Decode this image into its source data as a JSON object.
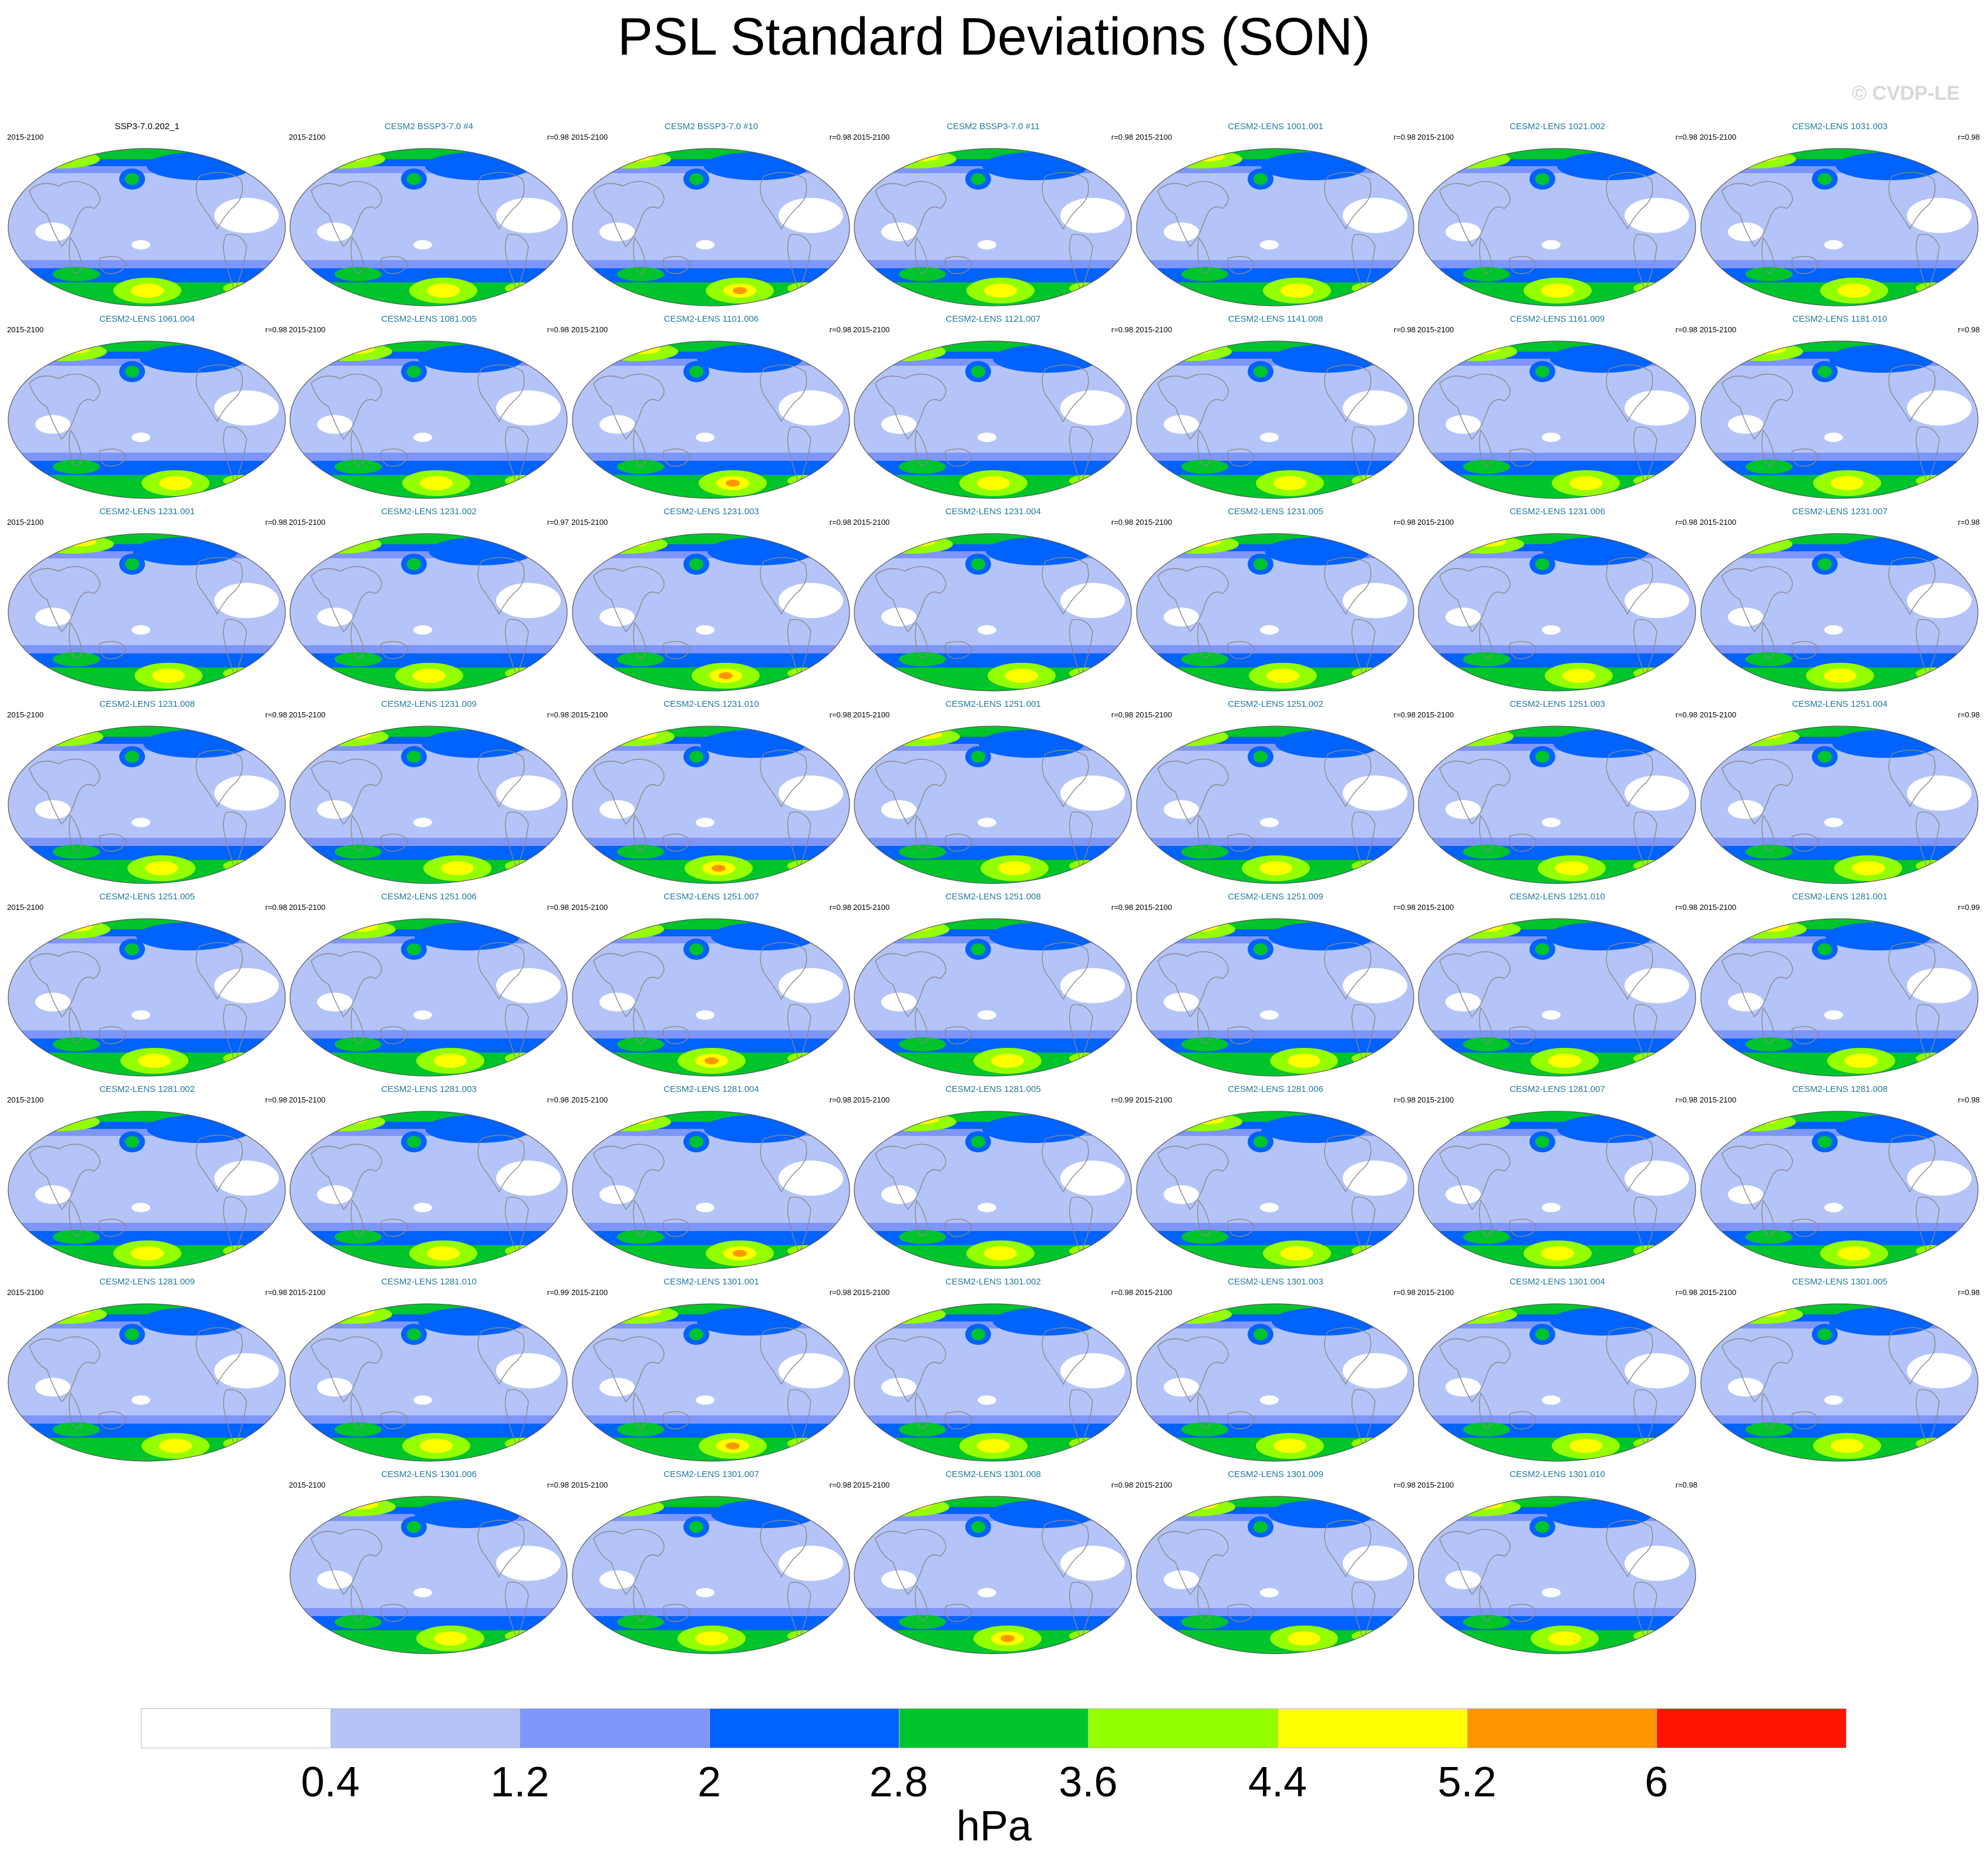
{
  "title": "PSL Standard Deviations (SON)",
  "credit": "© CVDP-LE",
  "period": "2015-2100",
  "panels": [
    {
      "name": "SSP3-7.0.202_1",
      "r": "",
      "reference": true
    },
    {
      "name": "CESM2 BSSP3-7.0 #4",
      "r": "r=0.98"
    },
    {
      "name": "CESM2 BSSP3-7.0 #10",
      "r": "r=0.98"
    },
    {
      "name": "CESM2 BSSP3-7.0 #11",
      "r": "r=0.98"
    },
    {
      "name": "CESM2-LENS 1001.001",
      "r": "r=0.98"
    },
    {
      "name": "CESM2-LENS 1021.002",
      "r": "r=0.98"
    },
    {
      "name": "CESM2-LENS 1031.003",
      "r": "r=0.98"
    },
    {
      "name": "CESM2-LENS 1061.004",
      "r": "r=0.98"
    },
    {
      "name": "CESM2-LENS 1081.005",
      "r": "r=0.98"
    },
    {
      "name": "CESM2-LENS 1101.006",
      "r": "r=0.98"
    },
    {
      "name": "CESM2-LENS 1121.007",
      "r": "r=0.98"
    },
    {
      "name": "CESM2-LENS 1141.008",
      "r": "r=0.98"
    },
    {
      "name": "CESM2-LENS 1161.009",
      "r": "r=0.98"
    },
    {
      "name": "CESM2-LENS 1181.010",
      "r": "r=0.98"
    },
    {
      "name": "CESM2-LENS 1231.001",
      "r": "r=0.98"
    },
    {
      "name": "CESM2-LENS 1231.002",
      "r": "r=0.97"
    },
    {
      "name": "CESM2-LENS 1231.003",
      "r": "r=0.98"
    },
    {
      "name": "CESM2-LENS 1231.004",
      "r": "r=0.98"
    },
    {
      "name": "CESM2-LENS 1231.005",
      "r": "r=0.98"
    },
    {
      "name": "CESM2-LENS 1231.006",
      "r": "r=0.98"
    },
    {
      "name": "CESM2-LENS 1231.007",
      "r": "r=0.98"
    },
    {
      "name": "CESM2-LENS 1231.008",
      "r": "r=0.98"
    },
    {
      "name": "CESM2-LENS 1231.009",
      "r": "r=0.98"
    },
    {
      "name": "CESM2-LENS 1231.010",
      "r": "r=0.98"
    },
    {
      "name": "CESM2-LENS 1251.001",
      "r": "r=0.98"
    },
    {
      "name": "CESM2-LENS 1251.002",
      "r": "r=0.98"
    },
    {
      "name": "CESM2-LENS 1251.003",
      "r": "r=0.98"
    },
    {
      "name": "CESM2-LENS 1251.004",
      "r": "r=0.98"
    },
    {
      "name": "CESM2-LENS 1251.005",
      "r": "r=0.98"
    },
    {
      "name": "CESM2-LENS 1251.006",
      "r": "r=0.98"
    },
    {
      "name": "CESM2-LENS 1251.007",
      "r": "r=0.98"
    },
    {
      "name": "CESM2-LENS 1251.008",
      "r": "r=0.98"
    },
    {
      "name": "CESM2-LENS 1251.009",
      "r": "r=0.98"
    },
    {
      "name": "CESM2-LENS 1251.010",
      "r": "r=0.98"
    },
    {
      "name": "CESM2-LENS 1281.001",
      "r": "r=0.99"
    },
    {
      "name": "CESM2-LENS 1281.002",
      "r": "r=0.98"
    },
    {
      "name": "CESM2-LENS 1281.003",
      "r": "r=0.98"
    },
    {
      "name": "CESM2-LENS 1281.004",
      "r": "r=0.98"
    },
    {
      "name": "CESM2-LENS 1281.005",
      "r": "r=0.99"
    },
    {
      "name": "CESM2-LENS 1281.006",
      "r": "r=0.98"
    },
    {
      "name": "CESM2-LENS 1281.007",
      "r": "r=0.98"
    },
    {
      "name": "CESM2-LENS 1281.008",
      "r": "r=0.98"
    },
    {
      "name": "CESM2-LENS 1281.009",
      "r": "r=0.98"
    },
    {
      "name": "CESM2-LENS 1281.010",
      "r": "r=0.99"
    },
    {
      "name": "CESM2-LENS 1301.001",
      "r": "r=0.98"
    },
    {
      "name": "CESM2-LENS 1301.002",
      "r": "r=0.98"
    },
    {
      "name": "CESM2-LENS 1301.003",
      "r": "r=0.98"
    },
    {
      "name": "CESM2-LENS 1301.004",
      "r": "r=0.98"
    },
    {
      "name": "CESM2-LENS 1301.005",
      "r": "r=0.98"
    },
    {
      "name": "CESM2-LENS 1301.006",
      "r": "r=0.98"
    },
    {
      "name": "CESM2-LENS 1301.007",
      "r": "r=0.98"
    },
    {
      "name": "CESM2-LENS 1301.008",
      "r": "r=0.98"
    },
    {
      "name": "CESM2-LENS 1301.009",
      "r": "r=0.98"
    },
    {
      "name": "CESM2-LENS 1301.010",
      "r": "r=0.98"
    }
  ],
  "chart_data": {
    "type": "heatmap",
    "title": "PSL Standard Deviations (SON)",
    "projection": "global map, Robinson-like ellipse",
    "colorbar": {
      "unit": "hPa",
      "levels": [
        0.4,
        1.2,
        2,
        2.8,
        3.6,
        4.4,
        5.2,
        6
      ],
      "tick_labels": [
        "0.4",
        "1.2",
        "2",
        "2.8",
        "3.6",
        "4.4",
        "5.2",
        "6"
      ],
      "colors": [
        "#ffffff",
        "#b4c4f8",
        "#7e96fa",
        "#0062ff",
        "#00c42c",
        "#94ff00",
        "#ffff00",
        "#ff9600",
        "#ff1400"
      ]
    },
    "pattern": "low variability (<1.2 hPa) in tropics, 2-3.6 hPa in mid-latitude storm tracks, maxima 4.4-6 hPa in Southern Ocean near Amundsen Sea and North Pacific/North Atlantic"
  }
}
